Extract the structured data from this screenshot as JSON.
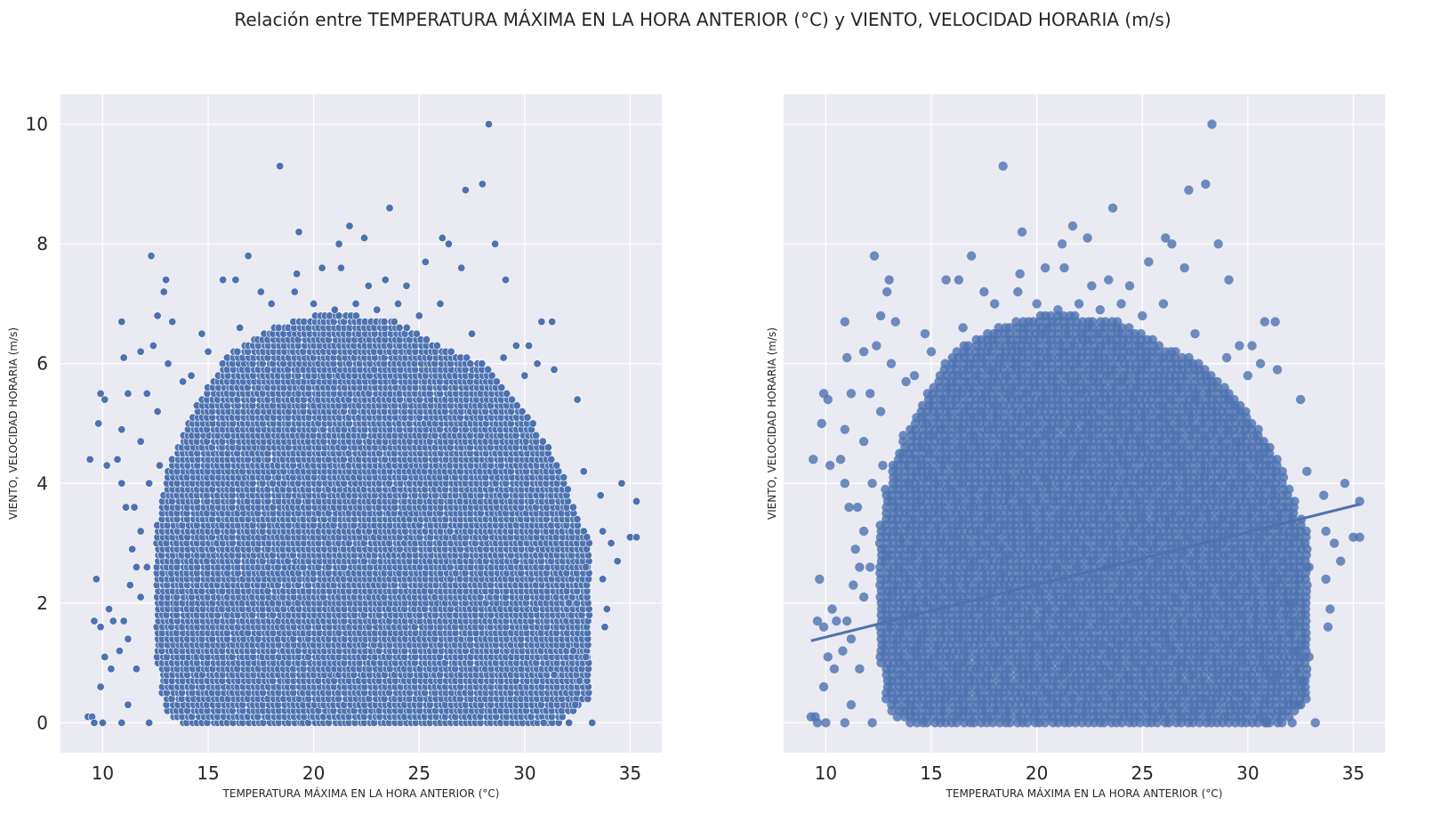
{
  "figure": {
    "title": "Relación entre TEMPERATURA MÁXIMA EN LA HORA ANTERIOR (°C) y VIENTO, VELOCIDAD HORARIA (m/s)"
  },
  "colors": {
    "background": "#ffffff",
    "axes_face": "#eaeaf2",
    "grid": "#ffffff",
    "marker": "#4c72b0",
    "marker_edge": "#ffffff",
    "text": "#262626"
  },
  "chart_data": [
    {
      "type": "scatter",
      "title": "",
      "xlabel": "TEMPERATURA MÁXIMA EN LA HORA ANTERIOR (°C)",
      "ylabel": "VIENTO, VELOCIDAD HORARIA (m/s)",
      "xlim": [
        8.0,
        36.5
      ],
      "ylim": [
        -0.5,
        10.5
      ],
      "xticks": [
        10,
        15,
        20,
        25,
        30,
        35
      ],
      "yticks": [
        0,
        2,
        4,
        6,
        8,
        10
      ],
      "grid": true,
      "legend": "none",
      "point_style": "seaborn scatterplot (white edges)",
      "density_note": "dense cloud of observations, x ≈ 9.3–35.3, y ≈ 0–10 (wind in 0.1 m/s steps)",
      "points": [
        [
          28.3,
          10.0
        ],
        [
          18.4,
          9.3
        ],
        [
          28.0,
          9.0
        ],
        [
          27.2,
          8.9
        ],
        [
          23.6,
          8.6
        ],
        [
          21.7,
          8.3
        ],
        [
          19.3,
          8.2
        ],
        [
          26.1,
          8.1
        ],
        [
          22.4,
          8.1
        ],
        [
          28.6,
          8.0
        ],
        [
          21.2,
          8.0
        ],
        [
          26.4,
          8.0
        ],
        [
          12.3,
          7.8
        ],
        [
          16.9,
          7.8
        ],
        [
          25.3,
          7.7
        ],
        [
          13.0,
          7.4
        ],
        [
          15.7,
          7.4
        ],
        [
          16.3,
          7.4
        ],
        [
          29.1,
          7.4
        ],
        [
          22.6,
          7.3
        ],
        [
          23.4,
          7.4
        ],
        [
          19.2,
          7.5
        ],
        [
          20.4,
          7.6
        ],
        [
          21.3,
          7.6
        ],
        [
          27.0,
          7.6
        ],
        [
          12.9,
          7.2
        ],
        [
          17.5,
          7.2
        ],
        [
          19.1,
          7.2
        ],
        [
          24.4,
          7.3
        ],
        [
          10.9,
          6.7
        ],
        [
          12.6,
          6.8
        ],
        [
          13.3,
          6.7
        ],
        [
          30.8,
          6.7
        ],
        [
          31.3,
          6.7
        ],
        [
          11.0,
          6.1
        ],
        [
          12.4,
          6.3
        ],
        [
          11.8,
          6.2
        ],
        [
          13.1,
          6.0
        ],
        [
          14.7,
          6.5
        ],
        [
          29.6,
          6.3
        ],
        [
          30.2,
          6.3
        ],
        [
          30.6,
          6.0
        ],
        [
          31.4,
          5.9
        ],
        [
          32.5,
          5.4
        ],
        [
          10.1,
          5.4
        ],
        [
          11.2,
          5.5
        ],
        [
          12.1,
          5.5
        ],
        [
          12.6,
          5.2
        ],
        [
          13.8,
          5.7
        ],
        [
          9.9,
          5.5
        ],
        [
          9.4,
          4.4
        ],
        [
          9.8,
          5.0
        ],
        [
          10.9,
          4.9
        ],
        [
          11.8,
          4.7
        ],
        [
          10.7,
          4.4
        ],
        [
          10.2,
          4.3
        ],
        [
          10.9,
          4.0
        ],
        [
          12.7,
          4.3
        ],
        [
          12.2,
          4.0
        ],
        [
          32.8,
          4.2
        ],
        [
          33.6,
          3.8
        ],
        [
          34.6,
          4.0
        ],
        [
          35.3,
          3.7
        ],
        [
          35.0,
          3.1
        ],
        [
          35.3,
          3.1
        ],
        [
          34.1,
          3.0
        ],
        [
          33.7,
          3.2
        ],
        [
          34.4,
          2.7
        ],
        [
          33.7,
          2.4
        ],
        [
          33.9,
          1.9
        ],
        [
          33.8,
          1.6
        ],
        [
          32.3,
          1.2
        ],
        [
          32.6,
          0.7
        ],
        [
          32.4,
          0.3
        ],
        [
          32.1,
          0.0
        ],
        [
          11.5,
          3.6
        ],
        [
          11.1,
          3.6
        ],
        [
          11.8,
          3.2
        ],
        [
          11.4,
          2.9
        ],
        [
          11.6,
          2.6
        ],
        [
          12.1,
          2.6
        ],
        [
          11.3,
          2.3
        ],
        [
          11.8,
          2.1
        ],
        [
          9.7,
          2.4
        ],
        [
          11.0,
          1.7
        ],
        [
          10.3,
          1.9
        ],
        [
          9.6,
          1.7
        ],
        [
          9.9,
          1.6
        ],
        [
          10.5,
          1.7
        ],
        [
          11.2,
          1.4
        ],
        [
          10.8,
          1.2
        ],
        [
          10.1,
          1.1
        ],
        [
          10.4,
          0.9
        ],
        [
          11.6,
          0.9
        ],
        [
          11.2,
          0.3
        ],
        [
          9.9,
          0.6
        ],
        [
          9.3,
          0.1
        ],
        [
          9.5,
          0.1
        ],
        [
          9.6,
          0.0
        ],
        [
          10.0,
          0.0
        ],
        [
          10.9,
          0.0
        ],
        [
          12.2,
          0.0
        ],
        [
          30.9,
          0.0
        ],
        [
          33.2,
          0.0
        ],
        [
          31.4,
          0.8
        ],
        [
          32.9,
          1.1
        ],
        [
          32.1,
          2.0
        ],
        [
          32.9,
          2.6
        ],
        [
          18.0,
          7.0
        ],
        [
          20.0,
          7.0
        ],
        [
          22.0,
          7.0
        ],
        [
          24.0,
          7.0
        ],
        [
          26.0,
          7.0
        ],
        [
          21.0,
          6.9
        ],
        [
          23.0,
          6.9
        ],
        [
          25.0,
          6.8
        ],
        [
          27.5,
          6.5
        ],
        [
          16.5,
          6.6
        ],
        [
          15.0,
          6.2
        ],
        [
          14.2,
          5.8
        ],
        [
          29.0,
          6.1
        ],
        [
          30.0,
          5.8
        ]
      ],
      "fill_regions": [
        {
          "x": 14.0,
          "ymin": 0.0,
          "ymax": 5.0
        },
        {
          "x": 16.0,
          "ymin": 0.0,
          "ymax": 6.2
        },
        {
          "x": 18.0,
          "ymin": 0.0,
          "ymax": 6.6
        },
        {
          "x": 20.0,
          "ymin": 0.0,
          "ymax": 6.8
        },
        {
          "x": 22.0,
          "ymin": 0.0,
          "ymax": 6.8
        },
        {
          "x": 24.0,
          "ymin": 0.0,
          "ymax": 6.7
        },
        {
          "x": 26.0,
          "ymin": 0.0,
          "ymax": 6.3
        },
        {
          "x": 28.0,
          "ymin": 0.0,
          "ymax": 6.0
        },
        {
          "x": 30.0,
          "ymin": 0.0,
          "ymax": 5.2
        },
        {
          "x": 31.5,
          "ymin": 0.0,
          "ymax": 4.4
        },
        {
          "x": 32.8,
          "ymin": 0.4,
          "ymax": 3.2
        },
        {
          "x": 13.0,
          "ymin": 0.2,
          "ymax": 4.2
        },
        {
          "x": 12.6,
          "ymin": 1.0,
          "ymax": 3.4
        }
      ]
    },
    {
      "type": "scatter",
      "title": "",
      "xlabel": "TEMPERATURA MÁXIMA EN LA HORA ANTERIOR (°C)",
      "ylabel": "VIENTO, VELOCIDAD HORARIA (m/s)",
      "xlim": [
        8.0,
        36.5
      ],
      "ylim": [
        -0.5,
        10.5
      ],
      "xticks": [
        10,
        15,
        20,
        25,
        30,
        35
      ],
      "yticks": [
        0,
        2,
        4,
        6,
        8,
        10
      ],
      "grid": true,
      "legend": "none",
      "point_style": "seaborn regplot (filled, semi-transparent)",
      "regression": {
        "x": [
          9.3,
          35.3
        ],
        "y": [
          1.37,
          3.65
        ]
      },
      "uses_points_of": 0
    }
  ]
}
